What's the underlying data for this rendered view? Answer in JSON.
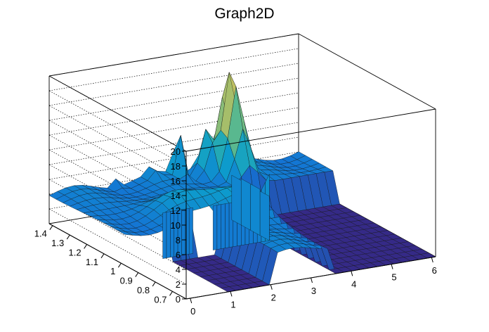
{
  "chart_data": {
    "type": "surface",
    "title": "Graph2D",
    "x": {
      "ticks": [
        0,
        1,
        2,
        3,
        4,
        5,
        6
      ],
      "range": [
        -0.1,
        6.1
      ]
    },
    "y": {
      "ticks": [
        0.7,
        0.8,
        0.9,
        1,
        1.1,
        1.2,
        1.3,
        1.4
      ],
      "range": [
        0.62,
        1.42
      ]
    },
    "z": {
      "ticks": [
        0,
        2,
        4,
        6,
        8,
        10,
        12,
        14,
        16,
        18,
        20
      ],
      "range": [
        0,
        20
      ]
    },
    "x_tick_labels": [
      "0",
      "1",
      "2",
      "3",
      "4",
      "5",
      "6"
    ],
    "y_tick_labels": [
      "0.7",
      "0.8",
      "0.9",
      "1",
      "1.1",
      "1.2",
      "1.3",
      "1.4"
    ],
    "z_tick_labels": [
      "0",
      "2",
      "4",
      "6",
      "8",
      "10",
      "12",
      "14",
      "16",
      "18",
      "20"
    ],
    "grid": true,
    "palette": [
      "#352a87",
      "#1473d4",
      "#0d9dcc",
      "#39b59e",
      "#a5be6b",
      "#f2c24a",
      "#f9fb0e"
    ]
  }
}
